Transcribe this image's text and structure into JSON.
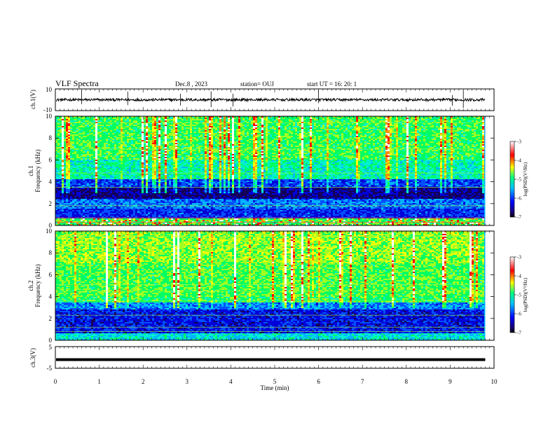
{
  "header": {
    "title": "VLF Spectra",
    "date": "Dec.8 , 2023",
    "station": "station= OUJ",
    "start": "start UT = 16: 20: 1"
  },
  "chart_data": [
    {
      "type": "line",
      "name": "ch1-waveform",
      "ylabel": "ch.1(V)",
      "ylim": [
        -10,
        10
      ],
      "y_ticks": [
        "10",
        "-10"
      ],
      "baseline": 0,
      "xlim": [
        0,
        10
      ]
    },
    {
      "type": "heatmap",
      "name": "ch1-spectrogram",
      "ylabel": "ch.1 Frequency (kHz)",
      "ylabel_lines": [
        "ch.1",
        "Frequency (kHz)"
      ],
      "ylim": [
        0,
        10
      ],
      "y_ticks": [
        "0",
        "2",
        "4",
        "6",
        "8",
        "10"
      ],
      "xlim": [
        0,
        10
      ],
      "data_end_min": 9.8,
      "colorbar": {
        "label": "log(PSD)(V²/Hz)",
        "range": [
          -7,
          -3
        ],
        "ticks": [
          "-3",
          "-4",
          "-5",
          "-6",
          "-7"
        ]
      }
    },
    {
      "type": "heatmap",
      "name": "ch2-spectrogram",
      "ylabel": "ch.2 Frequency (kHz)",
      "ylabel_lines": [
        "ch.2",
        "Frequency (kHz)"
      ],
      "ylim": [
        0,
        10
      ],
      "y_ticks": [
        "0",
        "2",
        "4",
        "6",
        "8",
        "10"
      ],
      "xlim": [
        0,
        10
      ],
      "data_end_min": 9.8,
      "colorbar": {
        "label": "log(PSD)(V²/Hz)",
        "range": [
          -7,
          -3
        ],
        "ticks": [
          "-3",
          "-4",
          "-5",
          "-6",
          "-7"
        ]
      }
    },
    {
      "type": "line",
      "name": "ch3-waveform",
      "ylabel": "ch.3(V)",
      "ylim": [
        -5,
        5
      ],
      "y_ticks": [
        "5",
        "-5"
      ],
      "baseline": -1,
      "xlim": [
        0,
        10
      ]
    }
  ],
  "x_axis": {
    "label": "Time (min)",
    "ticks": [
      "0",
      "1",
      "2",
      "3",
      "4",
      "5",
      "6",
      "7",
      "8",
      "9",
      "10"
    ]
  },
  "colors": {
    "colormap": [
      "#1a006e",
      "#0000ff",
      "#00bfff",
      "#00ff80",
      "#ffff00",
      "#ff0000",
      "#ffffff"
    ]
  }
}
